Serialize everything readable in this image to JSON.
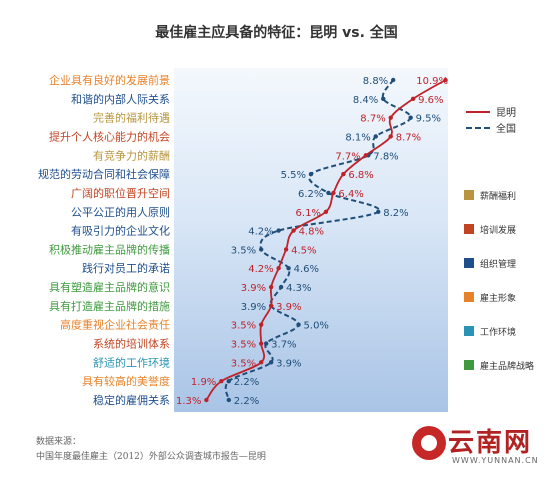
{
  "title": "最佳雇主应具备的特征：昆明 vs. 全国",
  "chart_data": {
    "type": "line",
    "categories": [
      "企业具有良好的发展前景",
      "和谐的内部人际关系",
      "完善的福利待遇",
      "提升个人核心能力的机会",
      "有竞争力的薪酬",
      "规范的劳动合同和社会保障",
      "广阔的职位晋升空间",
      "公平公正的用人原则",
      "有吸引力的企业文化",
      "积极推动雇主品牌的传播",
      "践行对员工的承诺",
      "具有塑造雇主品牌的意识",
      "具有打造雇主品牌的措施",
      "高度重视企业社会责任",
      "系统的培训体系",
      "舒适的工作环境",
      "具有较高的美誉度",
      "稳定的雇佣关系"
    ],
    "category_groups": [
      "雇主形象",
      "组织管理",
      "薪酬福利",
      "培训发展",
      "薪酬福利",
      "组织管理",
      "培训发展",
      "组织管理",
      "组织管理",
      "雇主品牌战略",
      "组织管理",
      "雇主品牌战略",
      "雇主品牌战略",
      "雇主形象",
      "培训发展",
      "工作环境",
      "雇主形象",
      "组织管理"
    ],
    "series": [
      {
        "name": "昆明",
        "style": "solid",
        "color": "#c0222a",
        "values": [
          10.9,
          9.6,
          8.7,
          8.7,
          7.7,
          6.8,
          6.4,
          6.1,
          4.8,
          4.5,
          4.2,
          3.9,
          3.9,
          3.5,
          3.5,
          3.5,
          1.9,
          1.3
        ],
        "labels": [
          "10.9%",
          "9.6%",
          "8.7%",
          "8.7%",
          "7.7%",
          "6.8%",
          "6.4%",
          "6.1%",
          "4.8%",
          "4.5%",
          "4.2%",
          "3.9%",
          "3.9%",
          "3.5%",
          "3.5%",
          "3.5%",
          "1.9%",
          "1.3%"
        ]
      },
      {
        "name": "全国",
        "style": "dashed",
        "color": "#1f4e79",
        "values": [
          8.8,
          8.4,
          9.5,
          8.1,
          7.8,
          5.5,
          6.2,
          8.2,
          4.2,
          3.5,
          4.6,
          4.3,
          3.9,
          5.0,
          3.7,
          3.9,
          2.2,
          2.2
        ],
        "labels": [
          "8.8%",
          "8.4%",
          "9.5%",
          "8.1%",
          "7.8%",
          "5.5%",
          "6.2%",
          "8.2%",
          "4.2%",
          "3.5%",
          "4.6%",
          "4.3%",
          "3.9%",
          "5.0%",
          "3.7%",
          "3.9%",
          "2.2%",
          "2.2%"
        ]
      }
    ],
    "xlim": [
      0,
      11
    ],
    "grid": false,
    "legend": {
      "series_placement": "top-right",
      "groups_placement": "right",
      "groups": [
        {
          "name": "薪酬福利",
          "color": "#b8953e"
        },
        {
          "name": "培训发展",
          "color": "#c24422"
        },
        {
          "name": "组织管理",
          "color": "#1f4e8c"
        },
        {
          "name": "雇主形象",
          "color": "#e8822a"
        },
        {
          "name": "工作环境",
          "color": "#2a93b5"
        },
        {
          "name": "雇主品牌战略",
          "color": "#3f9a3f"
        }
      ]
    }
  },
  "source": {
    "line1": "数据来源：",
    "line2": "中国年度最佳雇主（2012）外部公众调查城市报告—昆明"
  },
  "watermark": {
    "text": "云南网",
    "url": "WWW.YUNNAN.CN"
  }
}
